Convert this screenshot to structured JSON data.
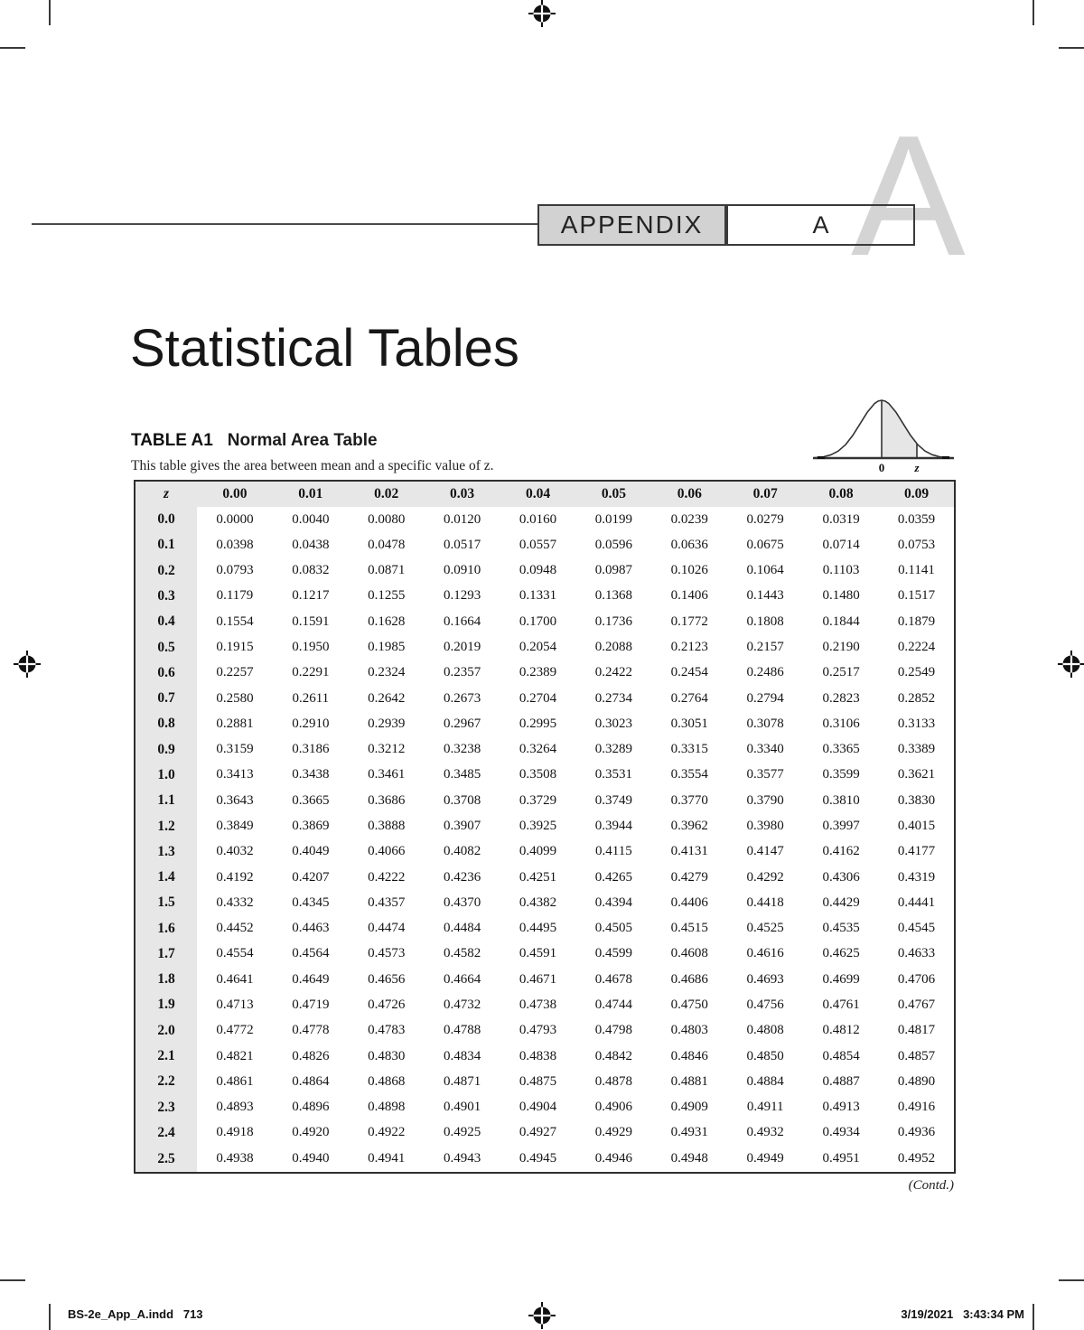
{
  "header": {
    "appendix_label": "APPENDIX",
    "appendix_letter": "A",
    "watermark_letter": "A"
  },
  "page_title": "Statistical Tables",
  "table_section": {
    "table_label": "TABLE A1",
    "table_title": "Normal Area Table",
    "caption": "This table gives the area between mean and a specific value of z.",
    "continued_note": "(Contd.)"
  },
  "curve": {
    "zero_label": "0",
    "z_label": "z"
  },
  "table": {
    "col_headers": [
      "z",
      "0.00",
      "0.01",
      "0.02",
      "0.03",
      "0.04",
      "0.05",
      "0.06",
      "0.07",
      "0.08",
      "0.09"
    ],
    "rows": [
      [
        "0.0",
        "0.0000",
        "0.0040",
        "0.0080",
        "0.0120",
        "0.0160",
        "0.0199",
        "0.0239",
        "0.0279",
        "0.0319",
        "0.0359"
      ],
      [
        "0.1",
        "0.0398",
        "0.0438",
        "0.0478",
        "0.0517",
        "0.0557",
        "0.0596",
        "0.0636",
        "0.0675",
        "0.0714",
        "0.0753"
      ],
      [
        "0.2",
        "0.0793",
        "0.0832",
        "0.0871",
        "0.0910",
        "0.0948",
        "0.0987",
        "0.1026",
        "0.1064",
        "0.1103",
        "0.1141"
      ],
      [
        "0.3",
        "0.1179",
        "0.1217",
        "0.1255",
        "0.1293",
        "0.1331",
        "0.1368",
        "0.1406",
        "0.1443",
        "0.1480",
        "0.1517"
      ],
      [
        "0.4",
        "0.1554",
        "0.1591",
        "0.1628",
        "0.1664",
        "0.1700",
        "0.1736",
        "0.1772",
        "0.1808",
        "0.1844",
        "0.1879"
      ],
      [
        "0.5",
        "0.1915",
        "0.1950",
        "0.1985",
        "0.2019",
        "0.2054",
        "0.2088",
        "0.2123",
        "0.2157",
        "0.2190",
        "0.2224"
      ],
      [
        "0.6",
        "0.2257",
        "0.2291",
        "0.2324",
        "0.2357",
        "0.2389",
        "0.2422",
        "0.2454",
        "0.2486",
        "0.2517",
        "0.2549"
      ],
      [
        "0.7",
        "0.2580",
        "0.2611",
        "0.2642",
        "0.2673",
        "0.2704",
        "0.2734",
        "0.2764",
        "0.2794",
        "0.2823",
        "0.2852"
      ],
      [
        "0.8",
        "0.2881",
        "0.2910",
        "0.2939",
        "0.2967",
        "0.2995",
        "0.3023",
        "0.3051",
        "0.3078",
        "0.3106",
        "0.3133"
      ],
      [
        "0.9",
        "0.3159",
        "0.3186",
        "0.3212",
        "0.3238",
        "0.3264",
        "0.3289",
        "0.3315",
        "0.3340",
        "0.3365",
        "0.3389"
      ],
      [
        "1.0",
        "0.3413",
        "0.3438",
        "0.3461",
        "0.3485",
        "0.3508",
        "0.3531",
        "0.3554",
        "0.3577",
        "0.3599",
        "0.3621"
      ],
      [
        "1.1",
        "0.3643",
        "0.3665",
        "0.3686",
        "0.3708",
        "0.3729",
        "0.3749",
        "0.3770",
        "0.3790",
        "0.3810",
        "0.3830"
      ],
      [
        "1.2",
        "0.3849",
        "0.3869",
        "0.3888",
        "0.3907",
        "0.3925",
        "0.3944",
        "0.3962",
        "0.3980",
        "0.3997",
        "0.4015"
      ],
      [
        "1.3",
        "0.4032",
        "0.4049",
        "0.4066",
        "0.4082",
        "0.4099",
        "0.4115",
        "0.4131",
        "0.4147",
        "0.4162",
        "0.4177"
      ],
      [
        "1.4",
        "0.4192",
        "0.4207",
        "0.4222",
        "0.4236",
        "0.4251",
        "0.4265",
        "0.4279",
        "0.4292",
        "0.4306",
        "0.4319"
      ],
      [
        "1.5",
        "0.4332",
        "0.4345",
        "0.4357",
        "0.4370",
        "0.4382",
        "0.4394",
        "0.4406",
        "0.4418",
        "0.4429",
        "0.4441"
      ],
      [
        "1.6",
        "0.4452",
        "0.4463",
        "0.4474",
        "0.4484",
        "0.4495",
        "0.4505",
        "0.4515",
        "0.4525",
        "0.4535",
        "0.4545"
      ],
      [
        "1.7",
        "0.4554",
        "0.4564",
        "0.4573",
        "0.4582",
        "0.4591",
        "0.4599",
        "0.4608",
        "0.4616",
        "0.4625",
        "0.4633"
      ],
      [
        "1.8",
        "0.4641",
        "0.4649",
        "0.4656",
        "0.4664",
        "0.4671",
        "0.4678",
        "0.4686",
        "0.4693",
        "0.4699",
        "0.4706"
      ],
      [
        "1.9",
        "0.4713",
        "0.4719",
        "0.4726",
        "0.4732",
        "0.4738",
        "0.4744",
        "0.4750",
        "0.4756",
        "0.4761",
        "0.4767"
      ],
      [
        "2.0",
        "0.4772",
        "0.4778",
        "0.4783",
        "0.4788",
        "0.4793",
        "0.4798",
        "0.4803",
        "0.4808",
        "0.4812",
        "0.4817"
      ],
      [
        "2.1",
        "0.4821",
        "0.4826",
        "0.4830",
        "0.4834",
        "0.4838",
        "0.4842",
        "0.4846",
        "0.4850",
        "0.4854",
        "0.4857"
      ],
      [
        "2.2",
        "0.4861",
        "0.4864",
        "0.4868",
        "0.4871",
        "0.4875",
        "0.4878",
        "0.4881",
        "0.4884",
        "0.4887",
        "0.4890"
      ],
      [
        "2.3",
        "0.4893",
        "0.4896",
        "0.4898",
        "0.4901",
        "0.4904",
        "0.4906",
        "0.4909",
        "0.4911",
        "0.4913",
        "0.4916"
      ],
      [
        "2.4",
        "0.4918",
        "0.4920",
        "0.4922",
        "0.4925",
        "0.4927",
        "0.4929",
        "0.4931",
        "0.4932",
        "0.4934",
        "0.4936"
      ],
      [
        "2.5",
        "0.4938",
        "0.4940",
        "0.4941",
        "0.4943",
        "0.4945",
        "0.4946",
        "0.4948",
        "0.4949",
        "0.4951",
        "0.4952"
      ]
    ]
  },
  "footer": {
    "left": "BS-2e_App_A.indd   713",
    "right": "3/19/2021   3:43:34 PM"
  },
  "colors": {
    "banner_gray": "#d2d2d2",
    "table_gray": "#e7e7e7",
    "watermark_gray": "#d4d4d4",
    "ink": "#1a1a1a"
  }
}
